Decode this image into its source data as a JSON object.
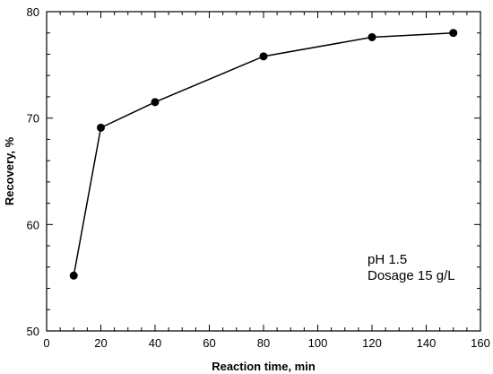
{
  "chart_data": {
    "type": "line",
    "title": "",
    "xlabel": "Reaction time, min",
    "ylabel": "Recovery, %",
    "xlim": [
      0,
      160
    ],
    "ylim": [
      50,
      80
    ],
    "x_ticks": [
      0,
      20,
      40,
      60,
      80,
      100,
      120,
      140,
      160
    ],
    "y_ticks": [
      50,
      60,
      70,
      80
    ],
    "grid": false,
    "legend": "none",
    "series": [
      {
        "x": [
          10,
          20,
          40,
          80,
          120,
          150
        ],
        "y": [
          55.2,
          69.1,
          71.5,
          75.8,
          77.6,
          78.0
        ],
        "marker": "circle",
        "color": "#000000"
      }
    ],
    "annotations": [
      "pH 1.5",
      "Dosage 15 g/L"
    ]
  }
}
